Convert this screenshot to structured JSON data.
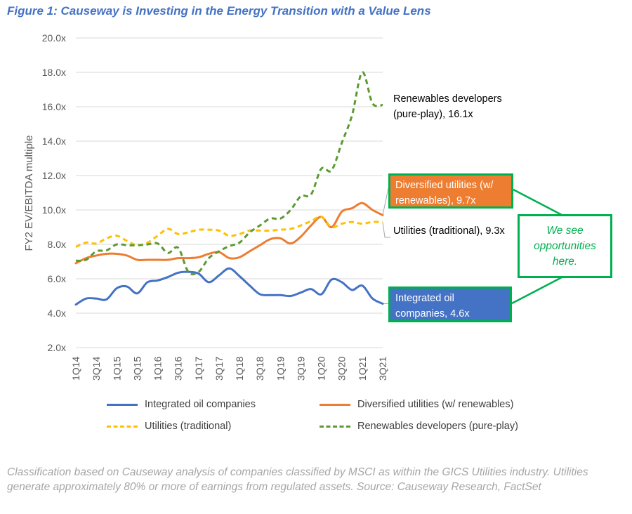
{
  "title": "Figure 1: Causeway is Investing in the Energy Transition with a Value Lens",
  "footnote": "Classification based on Causeway analysis of companies classified by MSCI as within the GICS Utilities industry. Utilities generate approximately 80% or more of earnings from regulated assets. Source: Causeway Research, FactSet",
  "annotations": {
    "renewables": "Renewables developers (pure-play), 16.1x",
    "diversified": "Diversified utilities (w/ renewables), 9.7x",
    "utilities": "Utilities (traditional), 9.3x",
    "oil": "Integrated oil companies, 4.6x",
    "callout": "We see opportunities here."
  },
  "colors": {
    "title": "#4472C4",
    "highlight_border": "#00B050",
    "grid": "#D9D9D9"
  },
  "chart_data": {
    "type": "line",
    "title": "",
    "xlabel": "",
    "ylabel": "FY2 EV/EBITDA multiple",
    "ylim": [
      2,
      20
    ],
    "yticks": [
      "2.0x",
      "4.0x",
      "6.0x",
      "8.0x",
      "10.0x",
      "12.0x",
      "14.0x",
      "16.0x",
      "18.0x",
      "20.0x"
    ],
    "grid": true,
    "legend_placement": "bottom",
    "x": [
      "1Q14",
      "2Q14",
      "3Q14",
      "4Q14",
      "1Q15",
      "2Q15",
      "3Q15",
      "4Q15",
      "1Q16",
      "2Q16",
      "3Q16",
      "4Q16",
      "1Q17",
      "2Q17",
      "3Q17",
      "4Q17",
      "1Q18",
      "2Q18",
      "3Q18",
      "4Q18",
      "1Q19",
      "2Q19",
      "3Q19",
      "4Q19",
      "1Q20",
      "2Q20",
      "3Q20",
      "4Q20",
      "1Q21",
      "2Q21",
      "3Q21"
    ],
    "xtick_labels": [
      "1Q14",
      "3Q14",
      "1Q15",
      "3Q15",
      "1Q16",
      "3Q16",
      "1Q17",
      "3Q17",
      "1Q18",
      "3Q18",
      "1Q19",
      "3Q19",
      "1Q20",
      "3Q20",
      "1Q21",
      "3Q21"
    ],
    "series": [
      {
        "name": "Integrated oil companies",
        "color": "#4472C4",
        "dash": "solid",
        "values": [
          4.5,
          4.85,
          4.85,
          4.8,
          5.45,
          5.55,
          5.15,
          5.8,
          5.9,
          6.1,
          6.35,
          6.4,
          6.3,
          5.8,
          6.2,
          6.6,
          6.15,
          5.6,
          5.1,
          5.05,
          5.05,
          5.0,
          5.2,
          5.4,
          5.1,
          5.95,
          5.8,
          5.35,
          5.6,
          4.85,
          4.55
        ]
      },
      {
        "name": "Diversified utilities (w/ renewables)",
        "color": "#ED7D31",
        "dash": "solid",
        "values": [
          6.9,
          7.2,
          7.35,
          7.45,
          7.45,
          7.35,
          7.1,
          7.1,
          7.1,
          7.1,
          7.2,
          7.2,
          7.25,
          7.45,
          7.55,
          7.2,
          7.25,
          7.6,
          7.95,
          8.3,
          8.35,
          8.05,
          8.45,
          9.1,
          9.6,
          9.0,
          9.9,
          10.1,
          10.4,
          10.0,
          9.7
        ]
      },
      {
        "name": "Utilities (traditional)",
        "color": "#FFC000",
        "dash": "dashed",
        "values": [
          7.85,
          8.1,
          8.05,
          8.35,
          8.5,
          8.2,
          7.95,
          8.1,
          8.5,
          8.9,
          8.6,
          8.7,
          8.85,
          8.85,
          8.8,
          8.5,
          8.6,
          8.8,
          8.8,
          8.8,
          8.85,
          8.9,
          9.1,
          9.35,
          9.6,
          9.0,
          9.2,
          9.3,
          9.2,
          9.3,
          9.3
        ]
      },
      {
        "name": "Renewables developers (pure-play)",
        "color": "#5B9B32",
        "dash": "dashed",
        "values": [
          7.05,
          7.1,
          7.6,
          7.65,
          8.0,
          7.95,
          7.95,
          8.0,
          8.05,
          7.5,
          7.8,
          6.4,
          6.4,
          7.2,
          7.6,
          7.9,
          8.1,
          8.7,
          9.1,
          9.5,
          9.5,
          10.0,
          10.8,
          10.9,
          12.4,
          12.3,
          13.9,
          15.5,
          18.0,
          16.2,
          16.1
        ]
      }
    ]
  }
}
